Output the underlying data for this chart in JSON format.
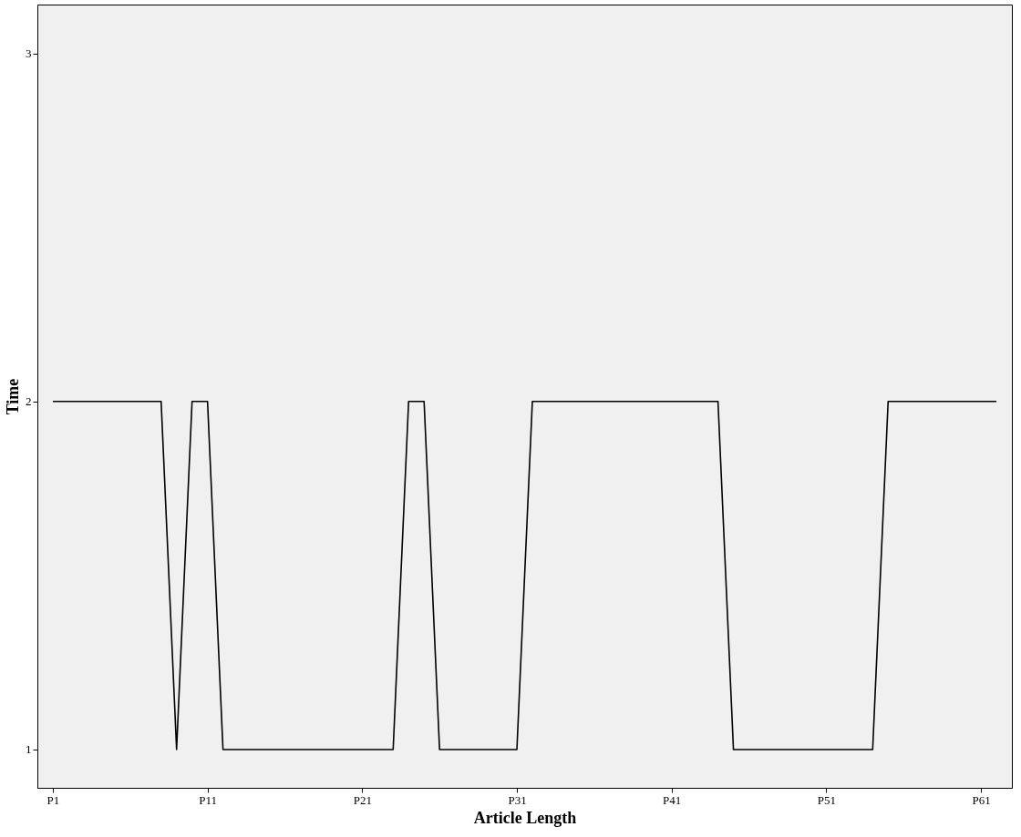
{
  "chart_data": {
    "type": "line",
    "xlabel": "Article Length",
    "ylabel": "Time",
    "categories": [
      "P1",
      null,
      null,
      null,
      null,
      null,
      null,
      null,
      null,
      null,
      "P11",
      null,
      null,
      null,
      null,
      null,
      null,
      null,
      null,
      null,
      "P21",
      null,
      null,
      null,
      null,
      null,
      null,
      null,
      null,
      null,
      "P31",
      null,
      null,
      null,
      null,
      null,
      null,
      null,
      null,
      null,
      "P41",
      null,
      null,
      null,
      null,
      null,
      null,
      null,
      null,
      null,
      "P51",
      null,
      null,
      null,
      null,
      null,
      null,
      null,
      null,
      null,
      "P61",
      null
    ],
    "series": [
      {
        "color": "#000000",
        "values": [
          2,
          2,
          2,
          2,
          2,
          2,
          2,
          2,
          1,
          2,
          2,
          1,
          1,
          1,
          1,
          1,
          1,
          1,
          1,
          1,
          1,
          1,
          1,
          2,
          2,
          1,
          1,
          1,
          1,
          1,
          1,
          2,
          2,
          2,
          2,
          2,
          2,
          2,
          2,
          2,
          2,
          2,
          2,
          2,
          1,
          1,
          1,
          1,
          1,
          1,
          1,
          1,
          1,
          1,
          2,
          2,
          2,
          2,
          2,
          2,
          2,
          2
        ]
      }
    ],
    "ylim": [
      0.89,
      3.14
    ],
    "yticks": [
      1,
      2,
      3
    ],
    "grid": false,
    "legend": false,
    "marker": "none",
    "line_style": "solid"
  }
}
